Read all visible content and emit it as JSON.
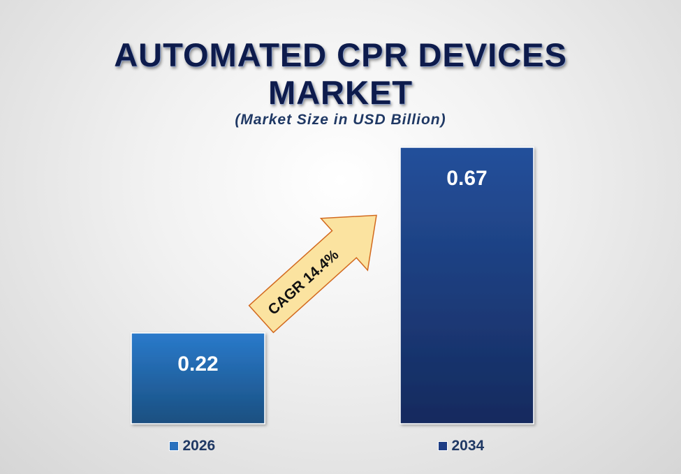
{
  "title_line1": "AUTOMATED CPR DEVICES",
  "title_line2": "MARKET",
  "subtitle": "(Market Size in USD Billion)",
  "chart_data": {
    "type": "bar",
    "title": "AUTOMATED CPR DEVICES MARKET",
    "subtitle": "(Market Size in USD Billion)",
    "categories": [
      "2026",
      "2034"
    ],
    "values": [
      0.22,
      0.67
    ],
    "data_labels": [
      "0.22",
      "0.67"
    ],
    "ylim": [
      0,
      0.67
    ],
    "grid": false,
    "legend": "bottom",
    "series_colors": [
      "#2a71bd",
      "#1f3e85"
    ],
    "annotation": "CAGR 14.4%",
    "annotation_color": "#fbe3a0"
  }
}
